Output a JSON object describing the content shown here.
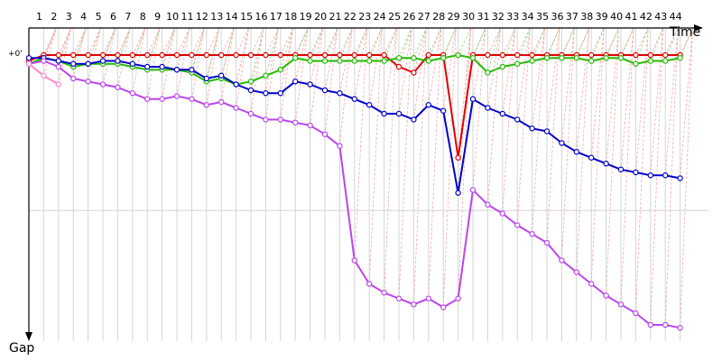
{
  "chart_data": {
    "type": "line",
    "x_axis_label": "Time",
    "y_axis_label": "Gap",
    "y_zero_label": "+0'",
    "lap_labels": [
      "1",
      "2",
      "3",
      "4",
      "5",
      "6",
      "7",
      "8",
      "9",
      "10",
      "11",
      "12",
      "13",
      "14",
      "15",
      "16",
      "17",
      "18",
      "19",
      "20",
      "21",
      "22",
      "23",
      "24",
      "25",
      "26",
      "27",
      "28",
      "29",
      "30",
      "31",
      "32",
      "33",
      "34",
      "35",
      "36",
      "37",
      "38",
      "39",
      "40",
      "41",
      "42",
      "43",
      "44"
    ],
    "ylim": [
      0,
      100
    ],
    "grid": true,
    "series": [
      {
        "color": "#e00000",
        "values": [
          2,
          0,
          0,
          0,
          0,
          0,
          0,
          0,
          0,
          0,
          0,
          0,
          0,
          0,
          0,
          0,
          0,
          0,
          0,
          0,
          0,
          0,
          0,
          0,
          0,
          4,
          6,
          0,
          0,
          35,
          0,
          0,
          0,
          0,
          0,
          0,
          0,
          0,
          0,
          0,
          0,
          0,
          0,
          0,
          0
        ]
      },
      {
        "color": "#22bb00",
        "values": [
          3,
          1,
          2,
          4,
          3,
          3,
          3,
          4,
          5,
          5,
          5,
          6,
          9,
          8,
          10,
          9,
          7,
          5,
          1,
          2,
          2,
          2,
          2,
          2,
          2,
          1,
          1,
          2,
          1,
          0,
          1,
          6,
          4,
          3,
          2,
          1,
          1,
          1,
          2,
          1,
          1,
          3,
          2,
          2,
          1
        ]
      },
      {
        "color": "#0000cc",
        "values": [
          1,
          1,
          2,
          3,
          3,
          2,
          2,
          3,
          4,
          4,
          5,
          5,
          8,
          7,
          10,
          12,
          13,
          13,
          9,
          10,
          12,
          13,
          15,
          17,
          20,
          20,
          22,
          17,
          19,
          47,
          15,
          18,
          20,
          22,
          25,
          26,
          30,
          33,
          35,
          37,
          39,
          40,
          41,
          41,
          42
        ]
      },
      {
        "color": "#bb44ee",
        "values": [
          3,
          2,
          4,
          8,
          9,
          10,
          11,
          13,
          15,
          15,
          14,
          15,
          17,
          16,
          18,
          20,
          22,
          22,
          23,
          24,
          27,
          31,
          70,
          78,
          81,
          83,
          85,
          83,
          86,
          83,
          46,
          51,
          54,
          58,
          61,
          64,
          70,
          74,
          78,
          82,
          85,
          88,
          92,
          92,
          93
        ]
      },
      {
        "color": "#ff88cc",
        "values": [
          3,
          7,
          10
        ]
      }
    ]
  }
}
